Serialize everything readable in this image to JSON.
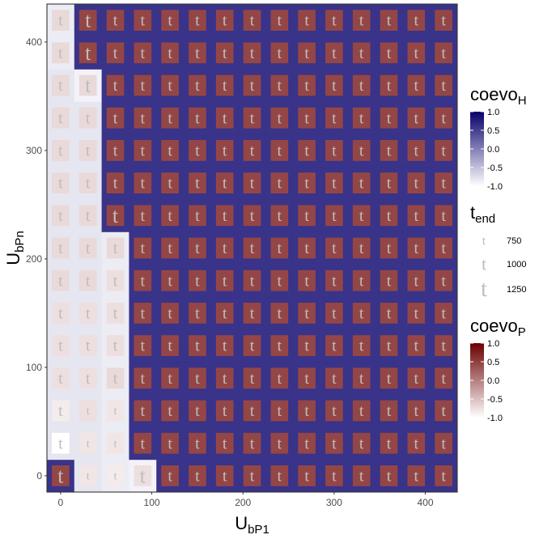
{
  "chart_data": {
    "type": "heatmap",
    "title": "",
    "xlabel": {
      "main": "U",
      "sub": "bP1"
    },
    "ylabel": {
      "main": "U",
      "sub": "bPn"
    },
    "x": [
      0,
      30,
      60,
      90,
      120,
      150,
      180,
      210,
      240,
      270,
      300,
      330,
      360,
      390,
      420
    ],
    "y": [
      0,
      30,
      60,
      90,
      120,
      150,
      180,
      210,
      240,
      270,
      300,
      330,
      360,
      390,
      420
    ],
    "xlim": [
      -15,
      435
    ],
    "ylim": [
      -15,
      435
    ],
    "xticks": [
      0,
      100,
      200,
      300,
      400
    ],
    "yticks": [
      0,
      100,
      200,
      300,
      400
    ],
    "grid": true,
    "legend_position": "right",
    "legends": [
      {
        "title": {
          "main": "coevo",
          "sub": "H"
        },
        "kind": "colorbar",
        "colors": [
          "#ffffff",
          "#08006b"
        ],
        "breaks": [
          1.0,
          0.5,
          0.0,
          -0.5,
          -1.0
        ],
        "limits": [
          -1.0,
          1.0
        ]
      },
      {
        "title": {
          "main": "t",
          "sub": "end"
        },
        "kind": "size",
        "breaks": [
          750,
          1000,
          1250
        ]
      },
      {
        "title": {
          "main": "coevo",
          "sub": "P"
        },
        "kind": "colorbar",
        "colors": [
          "#ffffff",
          "#6b0000"
        ],
        "breaks": [
          1.0,
          0.5,
          0.0,
          -0.5,
          -1.0
        ],
        "limits": [
          -1.0,
          1.0
        ]
      }
    ],
    "coevo_H": [
      [
        0.6,
        -0.8,
        -0.85,
        -0.9,
        0.6,
        0.6,
        0.6,
        0.6,
        0.6,
        0.6,
        0.6,
        0.6,
        0.6,
        0.6,
        0.6
      ],
      [
        -0.8,
        -0.8,
        -0.85,
        0.6,
        0.6,
        0.6,
        0.6,
        0.6,
        0.6,
        0.6,
        0.6,
        0.6,
        0.6,
        0.6,
        0.6
      ],
      [
        -0.8,
        -0.8,
        -0.85,
        0.6,
        0.6,
        0.6,
        0.6,
        0.6,
        0.6,
        0.6,
        0.6,
        0.6,
        0.6,
        0.6,
        0.6
      ],
      [
        -0.8,
        -0.8,
        -0.85,
        0.6,
        0.6,
        0.6,
        0.6,
        0.6,
        0.6,
        0.6,
        0.6,
        0.6,
        0.6,
        0.6,
        0.6
      ],
      [
        -0.8,
        -0.8,
        -0.85,
        0.6,
        0.6,
        0.6,
        0.6,
        0.6,
        0.6,
        0.6,
        0.6,
        0.6,
        0.6,
        0.6,
        0.6
      ],
      [
        -0.8,
        -0.8,
        -0.85,
        0.6,
        0.6,
        0.6,
        0.6,
        0.6,
        0.6,
        0.6,
        0.6,
        0.6,
        0.6,
        0.6,
        0.6
      ],
      [
        -0.8,
        -0.8,
        -0.85,
        0.6,
        0.6,
        0.6,
        0.6,
        0.6,
        0.6,
        0.6,
        0.6,
        0.6,
        0.6,
        0.6,
        0.6
      ],
      [
        -0.8,
        -0.8,
        -0.85,
        0.6,
        0.6,
        0.6,
        0.6,
        0.6,
        0.6,
        0.6,
        0.6,
        0.6,
        0.6,
        0.6,
        0.6
      ],
      [
        -0.8,
        -0.8,
        0.6,
        0.6,
        0.6,
        0.6,
        0.6,
        0.6,
        0.6,
        0.6,
        0.6,
        0.6,
        0.6,
        0.6,
        0.6
      ],
      [
        -0.8,
        -0.8,
        0.6,
        0.6,
        0.6,
        0.6,
        0.6,
        0.6,
        0.6,
        0.6,
        0.6,
        0.6,
        0.6,
        0.6,
        0.6
      ],
      [
        -0.8,
        -0.8,
        0.6,
        0.6,
        0.6,
        0.6,
        0.6,
        0.6,
        0.6,
        0.6,
        0.6,
        0.6,
        0.6,
        0.6,
        0.6
      ],
      [
        -0.8,
        -0.8,
        0.6,
        0.6,
        0.6,
        0.6,
        0.6,
        0.6,
        0.6,
        0.6,
        0.6,
        0.6,
        0.6,
        0.6,
        0.6
      ],
      [
        -0.8,
        -0.9,
        0.6,
        0.6,
        0.6,
        0.6,
        0.6,
        0.6,
        0.6,
        0.6,
        0.6,
        0.6,
        0.6,
        0.6,
        0.6
      ],
      [
        -0.85,
        0.6,
        0.6,
        0.6,
        0.6,
        0.6,
        0.6,
        0.6,
        0.6,
        0.6,
        0.6,
        0.6,
        0.6,
        0.6,
        0.6
      ],
      [
        -0.85,
        0.6,
        0.6,
        0.6,
        0.6,
        0.6,
        0.6,
        0.6,
        0.6,
        0.6,
        0.6,
        0.6,
        0.6,
        0.6,
        0.6
      ]
    ],
    "coevo_P": [
      [
        0.45,
        -0.8,
        -0.85,
        -0.75,
        0.45,
        0.45,
        0.45,
        0.45,
        0.45,
        0.45,
        0.45,
        0.45,
        0.45,
        0.45,
        0.45
      ],
      [
        -1.0,
        -0.8,
        -0.8,
        0.45,
        0.45,
        0.45,
        0.45,
        0.45,
        0.45,
        0.45,
        0.45,
        0.45,
        0.45,
        0.45,
        0.45
      ],
      [
        -0.85,
        -0.75,
        -0.8,
        0.45,
        0.45,
        0.45,
        0.45,
        0.45,
        0.45,
        0.45,
        0.45,
        0.45,
        0.45,
        0.45,
        0.45
      ],
      [
        -0.75,
        -0.75,
        -0.7,
        0.45,
        0.45,
        0.45,
        0.45,
        0.45,
        0.45,
        0.45,
        0.45,
        0.45,
        0.45,
        0.45,
        0.45
      ],
      [
        -0.75,
        -0.75,
        -0.75,
        0.45,
        0.45,
        0.45,
        0.45,
        0.45,
        0.45,
        0.45,
        0.45,
        0.45,
        0.45,
        0.45,
        0.45
      ],
      [
        -0.75,
        -0.75,
        -0.75,
        0.45,
        0.45,
        0.45,
        0.45,
        0.45,
        0.45,
        0.45,
        0.45,
        0.45,
        0.45,
        0.45,
        0.45
      ],
      [
        -0.7,
        -0.7,
        -0.75,
        0.45,
        0.45,
        0.45,
        0.45,
        0.45,
        0.45,
        0.45,
        0.45,
        0.45,
        0.45,
        0.45,
        0.45
      ],
      [
        -0.7,
        -0.7,
        -0.7,
        0.45,
        0.45,
        0.45,
        0.45,
        0.45,
        0.45,
        0.45,
        0.45,
        0.45,
        0.45,
        0.45,
        0.45
      ],
      [
        -0.7,
        -0.7,
        0.45,
        0.45,
        0.45,
        0.45,
        0.45,
        0.45,
        0.45,
        0.45,
        0.45,
        0.45,
        0.45,
        0.45,
        0.45
      ],
      [
        -0.7,
        -0.7,
        0.45,
        0.45,
        0.45,
        0.45,
        0.45,
        0.45,
        0.45,
        0.45,
        0.45,
        0.45,
        0.45,
        0.45,
        0.45
      ],
      [
        -0.7,
        -0.7,
        0.45,
        0.45,
        0.45,
        0.45,
        0.45,
        0.45,
        0.45,
        0.45,
        0.45,
        0.45,
        0.45,
        0.45,
        0.45
      ],
      [
        -0.7,
        -0.7,
        0.45,
        0.45,
        0.45,
        0.45,
        0.45,
        0.45,
        0.45,
        0.45,
        0.45,
        0.45,
        0.45,
        0.45,
        0.45
      ],
      [
        -0.7,
        -0.7,
        0.45,
        0.45,
        0.45,
        0.45,
        0.45,
        0.45,
        0.45,
        0.45,
        0.45,
        0.45,
        0.45,
        0.45,
        0.45
      ],
      [
        -0.7,
        0.45,
        0.45,
        0.45,
        0.45,
        0.45,
        0.45,
        0.45,
        0.45,
        0.45,
        0.45,
        0.45,
        0.45,
        0.45,
        0.45
      ],
      [
        -0.7,
        0.45,
        0.45,
        0.45,
        0.45,
        0.45,
        0.45,
        0.45,
        0.45,
        0.45,
        0.45,
        0.45,
        0.45,
        0.45,
        0.45
      ]
    ],
    "t_end": [
      [
        1250,
        750,
        750,
        1250,
        1000,
        1000,
        1000,
        1000,
        1000,
        1000,
        1000,
        1000,
        1000,
        1000,
        1000
      ],
      [
        1000,
        750,
        750,
        1000,
        1000,
        1000,
        1000,
        1000,
        1000,
        1000,
        1000,
        1000,
        1000,
        1000,
        1000
      ],
      [
        1000,
        750,
        750,
        1000,
        1000,
        1000,
        1000,
        1000,
        1000,
        1000,
        1000,
        1000,
        1000,
        1000,
        1000
      ],
      [
        1000,
        1000,
        1000,
        1000,
        1000,
        1000,
        1000,
        1000,
        1000,
        1000,
        1000,
        1000,
        1000,
        1000,
        1000
      ],
      [
        1000,
        1000,
        1000,
        1000,
        1000,
        1000,
        1000,
        1000,
        1000,
        1000,
        1000,
        1000,
        1000,
        1000,
        1000
      ],
      [
        1000,
        1000,
        1000,
        1000,
        1000,
        1000,
        1000,
        1000,
        1000,
        1000,
        1000,
        1000,
        1000,
        1000,
        1000
      ],
      [
        1000,
        1000,
        1000,
        1000,
        1000,
        1000,
        1000,
        1000,
        1000,
        1000,
        1000,
        1000,
        1000,
        1000,
        1000
      ],
      [
        1000,
        1000,
        1000,
        1000,
        1000,
        1000,
        1000,
        1000,
        1000,
        1000,
        1000,
        1000,
        1000,
        1000,
        1000
      ],
      [
        1000,
        1000,
        1250,
        1000,
        1000,
        1000,
        1000,
        1000,
        1000,
        1000,
        1000,
        1000,
        1000,
        1000,
        1000
      ],
      [
        1000,
        1000,
        1000,
        1000,
        1000,
        1000,
        1000,
        1000,
        1000,
        1000,
        1000,
        1000,
        1000,
        1000,
        1000
      ],
      [
        1000,
        1000,
        1000,
        1000,
        1000,
        1000,
        1000,
        1000,
        1000,
        1000,
        1000,
        1000,
        1000,
        1000,
        1000
      ],
      [
        1000,
        1000,
        1000,
        1000,
        1000,
        1000,
        1000,
        1000,
        1000,
        1000,
        1000,
        1000,
        1000,
        1000,
        1000
      ],
      [
        1000,
        1250,
        1000,
        1000,
        1000,
        1000,
        1000,
        1000,
        1000,
        1000,
        1000,
        1000,
        1000,
        1000,
        1000
      ],
      [
        1000,
        1250,
        1000,
        1000,
        1000,
        1000,
        1000,
        1000,
        1000,
        1000,
        1000,
        1000,
        1000,
        1000,
        1000
      ],
      [
        1000,
        1250,
        1000,
        1000,
        1000,
        1000,
        1000,
        1000,
        1000,
        1000,
        1000,
        1000,
        1000,
        1000,
        1000
      ]
    ],
    "glyph": "t"
  }
}
